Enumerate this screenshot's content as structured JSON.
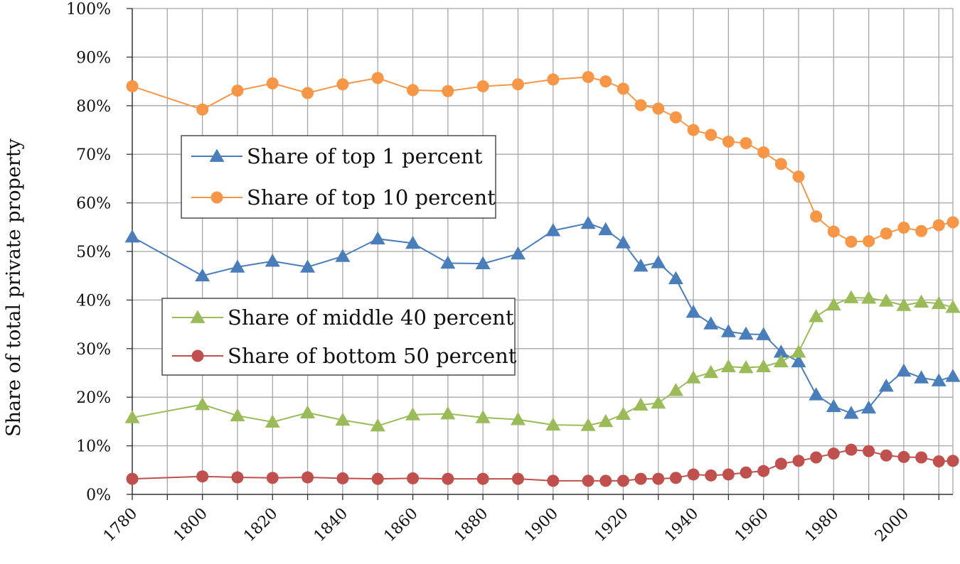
{
  "chart_data": {
    "type": "line",
    "title": "",
    "ylabel": "Share of total private property",
    "xlabel": "",
    "ylim": [
      0,
      100
    ],
    "xlim": [
      1780,
      2014
    ],
    "yticks": [
      0,
      10,
      20,
      30,
      40,
      50,
      60,
      70,
      80,
      90,
      100
    ],
    "ytick_labels": [
      "0%",
      "10%",
      "20%",
      "30%",
      "40%",
      "50%",
      "60%",
      "70%",
      "80%",
      "90%",
      "100%"
    ],
    "xticks": [
      1780,
      1800,
      1820,
      1840,
      1860,
      1880,
      1900,
      1920,
      1940,
      1960,
      1980,
      2000
    ],
    "xtick_labels": [
      "1780",
      "1800",
      "1820",
      "1840",
      "1860",
      "1880",
      "1900",
      "1920",
      "1940",
      "1960",
      "1980",
      "2000"
    ],
    "grid": true,
    "series": [
      {
        "name": "Share of top 1 percent",
        "color": "#4a7ebb",
        "marker": "triangle",
        "x": [
          1780,
          1800,
          1810,
          1820,
          1830,
          1840,
          1850,
          1860,
          1870,
          1880,
          1890,
          1900,
          1910,
          1915,
          1920,
          1925,
          1930,
          1935,
          1940,
          1945,
          1950,
          1955,
          1960,
          1965,
          1970,
          1975,
          1980,
          1985,
          1990,
          1995,
          2000,
          2005,
          2010,
          2014
        ],
        "y": [
          53,
          45,
          46.8,
          48,
          46.8,
          49,
          52.6,
          51.7,
          47.6,
          47.5,
          49.5,
          54.3,
          55.8,
          54.5,
          51.8,
          47,
          47.7,
          44.4,
          37.5,
          35.1,
          33.5,
          33,
          32.9,
          29.3,
          27.3,
          20.5,
          18.1,
          16.7,
          17.8,
          22.3,
          25.4,
          24,
          23.4,
          24.3
        ]
      },
      {
        "name": "Share of top 10 percent",
        "color": "#f79646",
        "marker": "circle",
        "x": [
          1780,
          1800,
          1810,
          1820,
          1830,
          1840,
          1850,
          1860,
          1870,
          1880,
          1890,
          1900,
          1910,
          1915,
          1920,
          1925,
          1930,
          1935,
          1940,
          1945,
          1950,
          1955,
          1960,
          1965,
          1970,
          1975,
          1980,
          1985,
          1990,
          1995,
          2000,
          2005,
          2010,
          2014
        ],
        "y": [
          84,
          79.2,
          83.1,
          84.6,
          82.6,
          84.4,
          85.7,
          83.2,
          83,
          84,
          84.4,
          85.4,
          85.9,
          85,
          83.5,
          80.1,
          79.4,
          77.6,
          75,
          74,
          72.6,
          72.3,
          70.4,
          68,
          65.4,
          57.2,
          54.1,
          52,
          52.1,
          53.7,
          54.9,
          54.2,
          55.4,
          56
        ]
      },
      {
        "name": "Share of middle 40 percent",
        "color": "#9bbb59",
        "marker": "triangle",
        "x": [
          1780,
          1800,
          1810,
          1820,
          1830,
          1840,
          1850,
          1860,
          1870,
          1880,
          1890,
          1900,
          1910,
          1915,
          1920,
          1925,
          1930,
          1935,
          1940,
          1945,
          1950,
          1955,
          1960,
          1965,
          1970,
          1975,
          1980,
          1985,
          1990,
          1995,
          2000,
          2005,
          2010,
          2014
        ],
        "y": [
          15.8,
          18.5,
          16.2,
          14.9,
          16.8,
          15.3,
          14.1,
          16.4,
          16.6,
          15.8,
          15.4,
          14.3,
          14.2,
          15,
          16.5,
          18.4,
          18.8,
          21.4,
          24,
          25.1,
          26.3,
          26.1,
          26.3,
          27.3,
          29.3,
          36.6,
          39,
          40.5,
          40.4,
          39.8,
          38.9,
          39.6,
          39.3,
          38.5
        ]
      },
      {
        "name": "Share of bottom 50 percent",
        "color": "#c0504d",
        "marker": "circle",
        "x": [
          1780,
          1800,
          1810,
          1820,
          1830,
          1840,
          1850,
          1860,
          1870,
          1880,
          1890,
          1900,
          1910,
          1915,
          1920,
          1925,
          1930,
          1935,
          1940,
          1945,
          1950,
          1955,
          1960,
          1965,
          1970,
          1975,
          1980,
          1985,
          1990,
          1995,
          2000,
          2005,
          2010,
          2014
        ],
        "y": [
          3.2,
          3.7,
          3.5,
          3.4,
          3.5,
          3.3,
          3.2,
          3.3,
          3.2,
          3.2,
          3.2,
          2.8,
          2.8,
          2.8,
          2.8,
          3.2,
          3.2,
          3.4,
          4.1,
          3.9,
          4.1,
          4.5,
          4.8,
          6.3,
          6.9,
          7.6,
          8.4,
          9.2,
          8.9,
          8,
          7.7,
          7.6,
          6.8,
          6.9
        ]
      }
    ],
    "legends": [
      {
        "series": [
          0,
          1
        ],
        "placement": "upper-left"
      },
      {
        "series": [
          2,
          3
        ],
        "placement": "middle-left"
      }
    ]
  }
}
